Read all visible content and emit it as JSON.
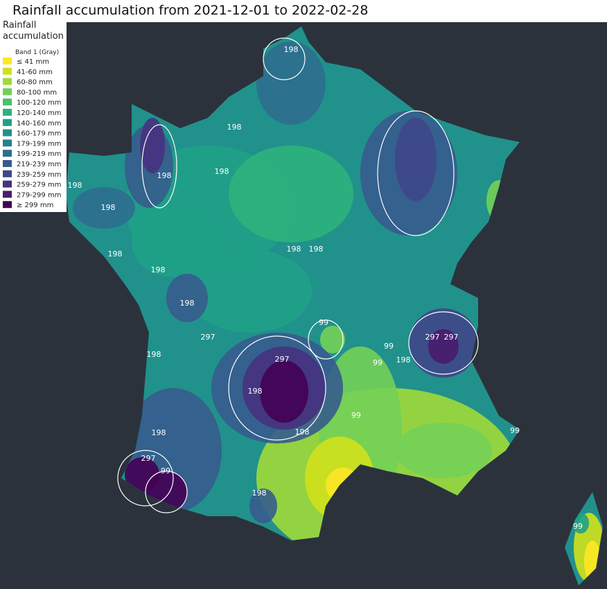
{
  "title": "Rainfall accumulation from 2021-12-01 to 2022-02-28",
  "legend": {
    "title": "Rainfall\naccumulation",
    "band": "Band 1 (Gray)",
    "items": [
      {
        "label": "≤ 41 mm",
        "color": "#fde725"
      },
      {
        "label": "41-60 mm",
        "color": "#d0e11c"
      },
      {
        "label": "60-80 mm",
        "color": "#a0da39"
      },
      {
        "label": "80-100 mm",
        "color": "#73d056"
      },
      {
        "label": "100-120 mm",
        "color": "#4ac16d"
      },
      {
        "label": "120-140 mm",
        "color": "#2db27d"
      },
      {
        "label": "140-160 mm",
        "color": "#1fa187"
      },
      {
        "label": "160-179 mm",
        "color": "#21918c"
      },
      {
        "label": "179-199 mm",
        "color": "#277f8e"
      },
      {
        "label": "199-219 mm",
        "color": "#2e6e8e"
      },
      {
        "label": "219-239 mm",
        "color": "#365c8d"
      },
      {
        "label": "239-259 mm",
        "color": "#3f4788"
      },
      {
        "label": "259-279 mm",
        "color": "#46327e"
      },
      {
        "label": "279-299 mm",
        "color": "#481c6e"
      },
      {
        "label": "≥ 299 mm",
        "color": "#440154"
      }
    ]
  },
  "contour_labels": [
    "198",
    "198",
    "198",
    "198",
    "198",
    "198",
    "198",
    "198",
    "198",
    "198",
    "198",
    "198",
    "198",
    "198",
    "198",
    "198",
    "198",
    "297",
    "297",
    "297",
    "297",
    "297",
    "99",
    "99",
    "99",
    "99",
    "99",
    "99",
    "99"
  ]
}
